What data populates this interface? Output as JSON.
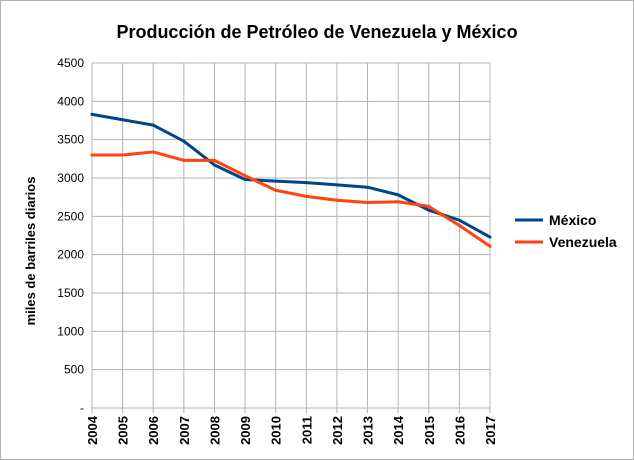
{
  "chart_data": {
    "type": "line",
    "title": "Producción de Petróleo de Venezuela y México",
    "xlabel": "",
    "ylabel": "miles de barriles diarios",
    "x": [
      "2004",
      "2005",
      "2006",
      "2007",
      "2008",
      "2009",
      "2010",
      "2011",
      "2012",
      "2013",
      "2014",
      "2015",
      "2016",
      "2017"
    ],
    "y_ticks": [
      "-",
      "500",
      "1000",
      "1500",
      "2000",
      "2500",
      "3000",
      "3500",
      "4000",
      "4500"
    ],
    "ylim": [
      0,
      4500
    ],
    "grid": true,
    "legend_position": "right",
    "series": [
      {
        "name": "México",
        "color": "#004586",
        "values": [
          3830,
          3760,
          3690,
          3480,
          3170,
          2980,
          2960,
          2940,
          2910,
          2880,
          2780,
          2580,
          2450,
          2230
        ]
      },
      {
        "name": "Venezuela",
        "color": "#ff420e",
        "values": [
          3300,
          3300,
          3340,
          3230,
          3230,
          3030,
          2840,
          2760,
          2710,
          2680,
          2690,
          2630,
          2380,
          2110
        ]
      }
    ]
  }
}
